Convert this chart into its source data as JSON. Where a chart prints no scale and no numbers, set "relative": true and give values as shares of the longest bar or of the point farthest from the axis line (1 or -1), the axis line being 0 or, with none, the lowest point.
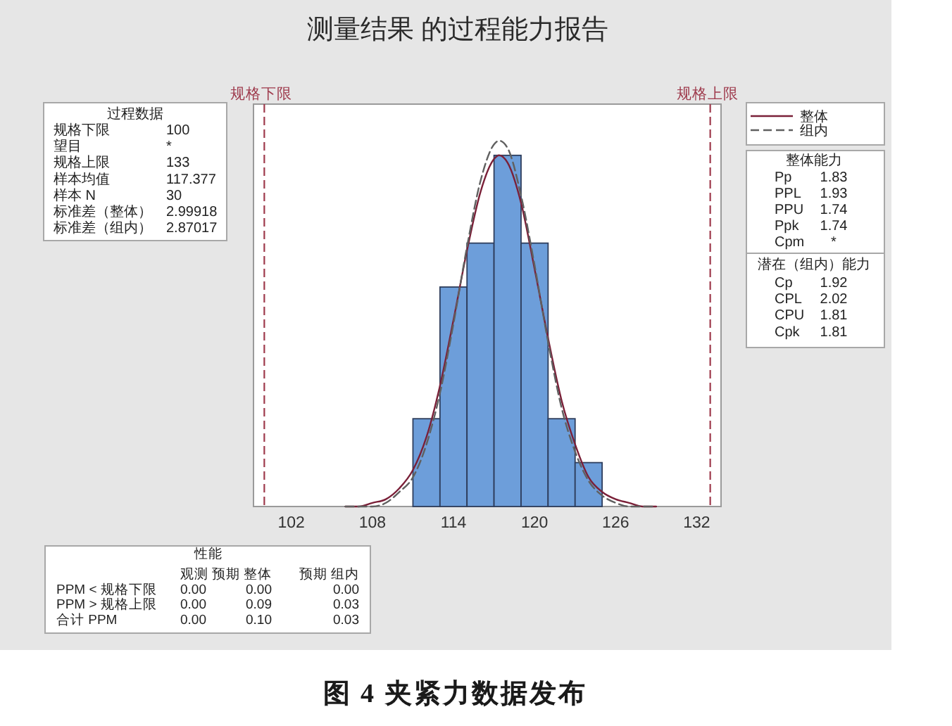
{
  "chart_data": [
    {
      "type": "histogram",
      "title": "测量结果 的过程能力报告",
      "relative": true,
      "bins": [
        111,
        113,
        115,
        117,
        119,
        121,
        123,
        125
      ],
      "values": [
        0.24,
        0.6,
        0.72,
        0.96,
        0.72,
        0.24,
        0.12
      ],
      "color": "#6d9eda",
      "series": [
        {
          "type": "line",
          "name": "整体",
          "color": "#7a2038",
          "line_style": "solid",
          "x": [
            106,
            107,
            108,
            109,
            110,
            111,
            112,
            113,
            114,
            115,
            116,
            117,
            117.377,
            118,
            119,
            120,
            121,
            122,
            123,
            124,
            125,
            126,
            127,
            128,
            129
          ],
          "values": [
            0,
            0,
            0.01,
            0.02,
            0.05,
            0.1,
            0.19,
            0.33,
            0.51,
            0.7,
            0.86,
            0.95,
            0.96,
            0.94,
            0.83,
            0.65,
            0.46,
            0.29,
            0.17,
            0.08,
            0.04,
            0.02,
            0.01,
            0,
            0
          ]
        },
        {
          "type": "line",
          "name": "组内",
          "color": "#606060",
          "line_style": "dashed",
          "x": [
            106,
            107,
            108,
            109,
            110,
            111,
            112,
            113,
            114,
            115,
            116,
            117,
            117.377,
            118,
            119,
            120,
            121,
            122,
            123,
            124,
            125,
            126,
            127,
            128,
            129
          ],
          "values": [
            0,
            0,
            0,
            0.01,
            0.04,
            0.08,
            0.17,
            0.31,
            0.5,
            0.71,
            0.89,
            0.99,
            1,
            0.98,
            0.85,
            0.66,
            0.45,
            0.27,
            0.15,
            0.07,
            0.03,
            0.01,
            0,
            0,
            0
          ]
        }
      ],
      "xlim": [
        99.2,
        133.8
      ],
      "xticks": [
        102,
        108,
        114,
        120,
        126,
        132
      ],
      "ref_lines": [
        {
          "axis": "x",
          "value": 100,
          "label": "规格下限",
          "color": "#9e3a4c",
          "line_style": "dashed"
        },
        {
          "axis": "x",
          "value": 133,
          "label": "规格上限",
          "color": "#9e3a4c",
          "line_style": "dashed"
        }
      ],
      "legend": "top right",
      "annotations": [
        "图 4 夹紧力数据发布"
      ]
    },
    {
      "type": "other",
      "title": "过程数据",
      "annotations": [
        "规格下限",
        "100",
        "望目",
        "*",
        "规格上限",
        "133",
        "样本均值",
        "117.377",
        "样本 N",
        "30",
        "标准差（整体）",
        "2.99918",
        "标准差（组内）",
        "2.87017"
      ]
    },
    {
      "type": "other",
      "title": "整体能力",
      "annotations": [
        "Pp",
        "1.83",
        "PPL",
        "1.93",
        "PPU",
        "1.74",
        "Ppk",
        "1.74",
        "Cpm",
        "*"
      ]
    },
    {
      "type": "other",
      "title": "潜在（组内）能力",
      "annotations": [
        "Cp",
        "1.92",
        "CPL",
        "2.02",
        "CPU",
        "1.81",
        "Cpk",
        "1.81"
      ]
    },
    {
      "type": "other",
      "title": "性能",
      "annotations": [
        "观测",
        "预期 整体",
        "预期 组内",
        "PPM < 规格下限",
        "0.00",
        "0.00",
        "0.00",
        "PPM > 规格上限",
        "0.00",
        "0.09",
        "0.03",
        "合计 PPM",
        "0.00",
        "0.10",
        "0.03"
      ]
    }
  ]
}
